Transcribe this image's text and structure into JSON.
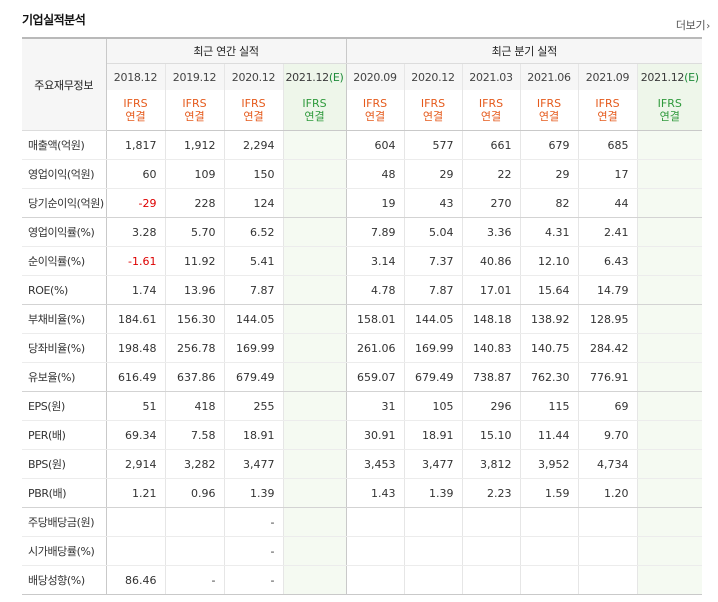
{
  "section": {
    "title": "기업실적분석",
    "more_label": "더보기",
    "more_icon": "chevron-right-icon"
  },
  "header": {
    "row_header": "주요재무정보",
    "annual_group": "최근 연간 실적",
    "quarter_group": "최근 분기 실적",
    "annual_periods": [
      "2018.12",
      "2019.12",
      "2020.12",
      "2021.12"
    ],
    "annual_estimate_suffix": "(E)",
    "quarter_periods": [
      "2020.09",
      "2020.12",
      "2021.03",
      "2021.06",
      "2021.09",
      "2021.12"
    ],
    "quarter_estimate_suffix": "(E)",
    "ifrs_top": "IFRS",
    "ifrs_bottom": "연결"
  },
  "rows": [
    {
      "label": "매출액(억원)",
      "values": [
        "1,817",
        "1,912",
        "2,294",
        "",
        "604",
        "577",
        "661",
        "679",
        "685",
        ""
      ]
    },
    {
      "label": "영업이익(억원)",
      "values": [
        "60",
        "109",
        "150",
        "",
        "48",
        "29",
        "22",
        "29",
        "17",
        ""
      ]
    },
    {
      "label": "당기순이익(억원)",
      "values": [
        "-29",
        "228",
        "124",
        "",
        "19",
        "43",
        "270",
        "82",
        "44",
        ""
      ]
    },
    {
      "label": "영업이익률(%)",
      "values": [
        "3.28",
        "5.70",
        "6.52",
        "",
        "7.89",
        "5.04",
        "3.36",
        "4.31",
        "2.41",
        ""
      ]
    },
    {
      "label": "순이익률(%)",
      "values": [
        "-1.61",
        "11.92",
        "5.41",
        "",
        "3.14",
        "7.37",
        "40.86",
        "12.10",
        "6.43",
        ""
      ]
    },
    {
      "label": "ROE(%)",
      "values": [
        "1.74",
        "13.96",
        "7.87",
        "",
        "4.78",
        "7.87",
        "17.01",
        "15.64",
        "14.79",
        ""
      ]
    },
    {
      "label": "부채비율(%)",
      "values": [
        "184.61",
        "156.30",
        "144.05",
        "",
        "158.01",
        "144.05",
        "148.18",
        "138.92",
        "128.95",
        ""
      ]
    },
    {
      "label": "당좌비율(%)",
      "values": [
        "198.48",
        "256.78",
        "169.99",
        "",
        "261.06",
        "169.99",
        "140.83",
        "140.75",
        "284.42",
        ""
      ]
    },
    {
      "label": "유보율(%)",
      "values": [
        "616.49",
        "637.86",
        "679.49",
        "",
        "659.07",
        "679.49",
        "738.87",
        "762.30",
        "776.91",
        ""
      ]
    },
    {
      "label": "EPS(원)",
      "values": [
        "51",
        "418",
        "255",
        "",
        "31",
        "105",
        "296",
        "115",
        "69",
        ""
      ]
    },
    {
      "label": "PER(배)",
      "values": [
        "69.34",
        "7.58",
        "18.91",
        "",
        "30.91",
        "18.91",
        "15.10",
        "11.44",
        "9.70",
        ""
      ]
    },
    {
      "label": "BPS(원)",
      "values": [
        "2,914",
        "3,282",
        "3,477",
        "",
        "3,453",
        "3,477",
        "3,812",
        "3,952",
        "4,734",
        ""
      ]
    },
    {
      "label": "PBR(배)",
      "values": [
        "1.21",
        "0.96",
        "1.39",
        "",
        "1.43",
        "1.39",
        "2.23",
        "1.59",
        "1.20",
        ""
      ]
    },
    {
      "label": "주당배당금(원)",
      "values": [
        "",
        "",
        "-",
        "",
        "",
        "",
        "",
        "",
        "",
        ""
      ]
    },
    {
      "label": "시가배당률(%)",
      "values": [
        "",
        "",
        "-",
        "",
        "",
        "",
        "",
        "",
        "",
        ""
      ]
    },
    {
      "label": "배당성향(%)",
      "values": [
        "86.46",
        "-",
        "-",
        "",
        "",
        "",
        "",
        "",
        "",
        ""
      ]
    }
  ],
  "colors": {
    "ifrs_text": "#e55a1c",
    "ifrs_estimate_text": "#2f9a3c",
    "negative_value": "#dd0000",
    "estimate_column_bg": "#eef6ea",
    "header_bg": "#f6f6f6"
  }
}
